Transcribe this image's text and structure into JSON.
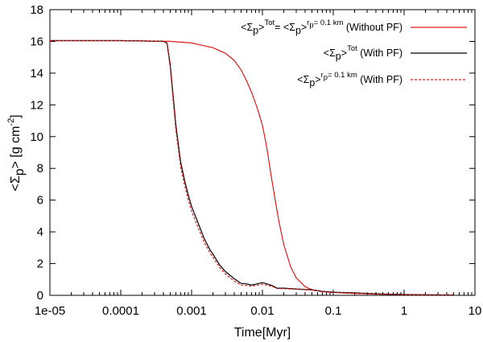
{
  "chart_data": {
    "type": "line",
    "title": "",
    "xlabel": "Time[Myr]",
    "ylabel": {
      "prefix": "<Σ",
      "sub": "p",
      "middle": "> [g cm",
      "sup": "-2",
      "suffix": "]"
    },
    "xscale": "log",
    "xlim": [
      1e-05,
      10
    ],
    "ylim": [
      0,
      18
    ],
    "grid": false,
    "legend_position": "top-right",
    "x_tick_labels": [
      "1e-05",
      "0.0001",
      "0.001",
      "0.01",
      "0.1",
      "1",
      "10"
    ],
    "x_tick_values": [
      1e-05,
      0.0001,
      0.001,
      0.01,
      0.1,
      1,
      10
    ],
    "y_tick_labels": [
      "0",
      "2",
      "4",
      "6",
      "8",
      "10",
      "12",
      "14",
      "16",
      "18"
    ],
    "y_tick_values": [
      0,
      2,
      4,
      6,
      8,
      10,
      12,
      14,
      16,
      18
    ],
    "series": [
      {
        "name": "<Σp>Tot = <Σp>rp = 0.1 km (Without PF)",
        "legend_parts": [
          {
            "t": "<Σ"
          },
          {
            "t": "p",
            "k": "sub"
          },
          {
            "t": ">"
          },
          {
            "t": "Tot",
            "k": "sup"
          },
          {
            "t": "= <Σ"
          },
          {
            "t": "p",
            "k": "sub"
          },
          {
            "t": ">"
          },
          {
            "t": "r",
            "k": "sup"
          },
          {
            "t": "p",
            "k": "supsub"
          },
          {
            "t": "= 0.1 km",
            "k": "sup"
          },
          {
            "t": " (Without PF)"
          }
        ],
        "color": "#e41a1c",
        "style": "solid",
        "x": [
          1e-05,
          0.0001,
          0.0005,
          0.001,
          0.002,
          0.003,
          0.004,
          0.005,
          0.006,
          0.007,
          0.008,
          0.009,
          0.01,
          0.011,
          0.012,
          0.013,
          0.015,
          0.017,
          0.02,
          0.025,
          0.03,
          0.04,
          0.05,
          0.07,
          0.1,
          0.2,
          0.5,
          1,
          2,
          5
        ],
        "y": [
          16.05,
          16.05,
          16.0,
          15.9,
          15.6,
          15.25,
          14.8,
          14.2,
          13.5,
          12.8,
          12.1,
          11.4,
          10.7,
          9.8,
          8.8,
          7.8,
          6.1,
          4.7,
          3.2,
          1.8,
          1.1,
          0.55,
          0.35,
          0.25,
          0.18,
          0.12,
          0.07,
          0.05,
          0.03,
          0.02
        ]
      },
      {
        "name": "<Σp>Tot (With PF)",
        "legend_parts": [
          {
            "t": "<Σ"
          },
          {
            "t": "p",
            "k": "sub"
          },
          {
            "t": ">"
          },
          {
            "t": "Tot",
            "k": "sup"
          },
          {
            "t": " (With PF)"
          }
        ],
        "color": "#000000",
        "style": "solid",
        "x": [
          1e-05,
          0.0001,
          0.0004,
          0.00045,
          0.0005,
          0.00055,
          0.0006,
          0.0007,
          0.0008,
          0.0009,
          0.001,
          0.0012,
          0.0015,
          0.0018,
          0.002,
          0.0025,
          0.003,
          0.004,
          0.005,
          0.006,
          0.007,
          0.008,
          0.01,
          0.012,
          0.014,
          0.016,
          0.02,
          0.03,
          0.05,
          0.07,
          0.1,
          0.2,
          0.5,
          1,
          2,
          5
        ],
        "y": [
          16.05,
          16.05,
          16.0,
          15.9,
          14.5,
          12.5,
          10.7,
          8.4,
          7.2,
          6.3,
          5.6,
          4.7,
          3.6,
          2.9,
          2.6,
          1.9,
          1.5,
          1.05,
          0.75,
          0.72,
          0.65,
          0.7,
          0.8,
          0.7,
          0.6,
          0.45,
          0.45,
          0.4,
          0.35,
          0.25,
          0.2,
          0.15,
          0.08,
          0.05,
          0.03,
          0.02
        ]
      },
      {
        "name": "<Σp>rp = 0.1 km (With PF)",
        "legend_parts": [
          {
            "t": "<Σ"
          },
          {
            "t": "p",
            "k": "sub"
          },
          {
            "t": ">"
          },
          {
            "t": "r",
            "k": "sup"
          },
          {
            "t": "p",
            "k": "supsub"
          },
          {
            "t": "= 0.1 km",
            "k": "sup"
          },
          {
            "t": " (With PF)"
          }
        ],
        "color": "#e41a1c",
        "style": "dashed",
        "x": [
          1e-05,
          0.0001,
          0.0004,
          0.00045,
          0.0005,
          0.00055,
          0.0006,
          0.0007,
          0.0008,
          0.0009,
          0.001,
          0.0012,
          0.0015,
          0.0018,
          0.002,
          0.0025,
          0.003,
          0.004,
          0.005,
          0.006,
          0.007,
          0.008,
          0.01,
          0.012,
          0.014,
          0.016,
          0.02,
          0.03,
          0.05,
          0.07,
          0.1,
          0.2,
          0.5,
          1,
          2,
          5
        ],
        "y": [
          16.05,
          16.05,
          16.0,
          15.85,
          14.3,
          12.2,
          10.4,
          8.1,
          6.9,
          6.0,
          5.3,
          4.4,
          3.35,
          2.7,
          2.4,
          1.75,
          1.35,
          0.9,
          0.65,
          0.62,
          0.58,
          0.62,
          0.7,
          0.62,
          0.55,
          0.42,
          0.42,
          0.38,
          0.33,
          0.23,
          0.18,
          0.13,
          0.07,
          0.04,
          0.02,
          0.01
        ]
      }
    ]
  }
}
